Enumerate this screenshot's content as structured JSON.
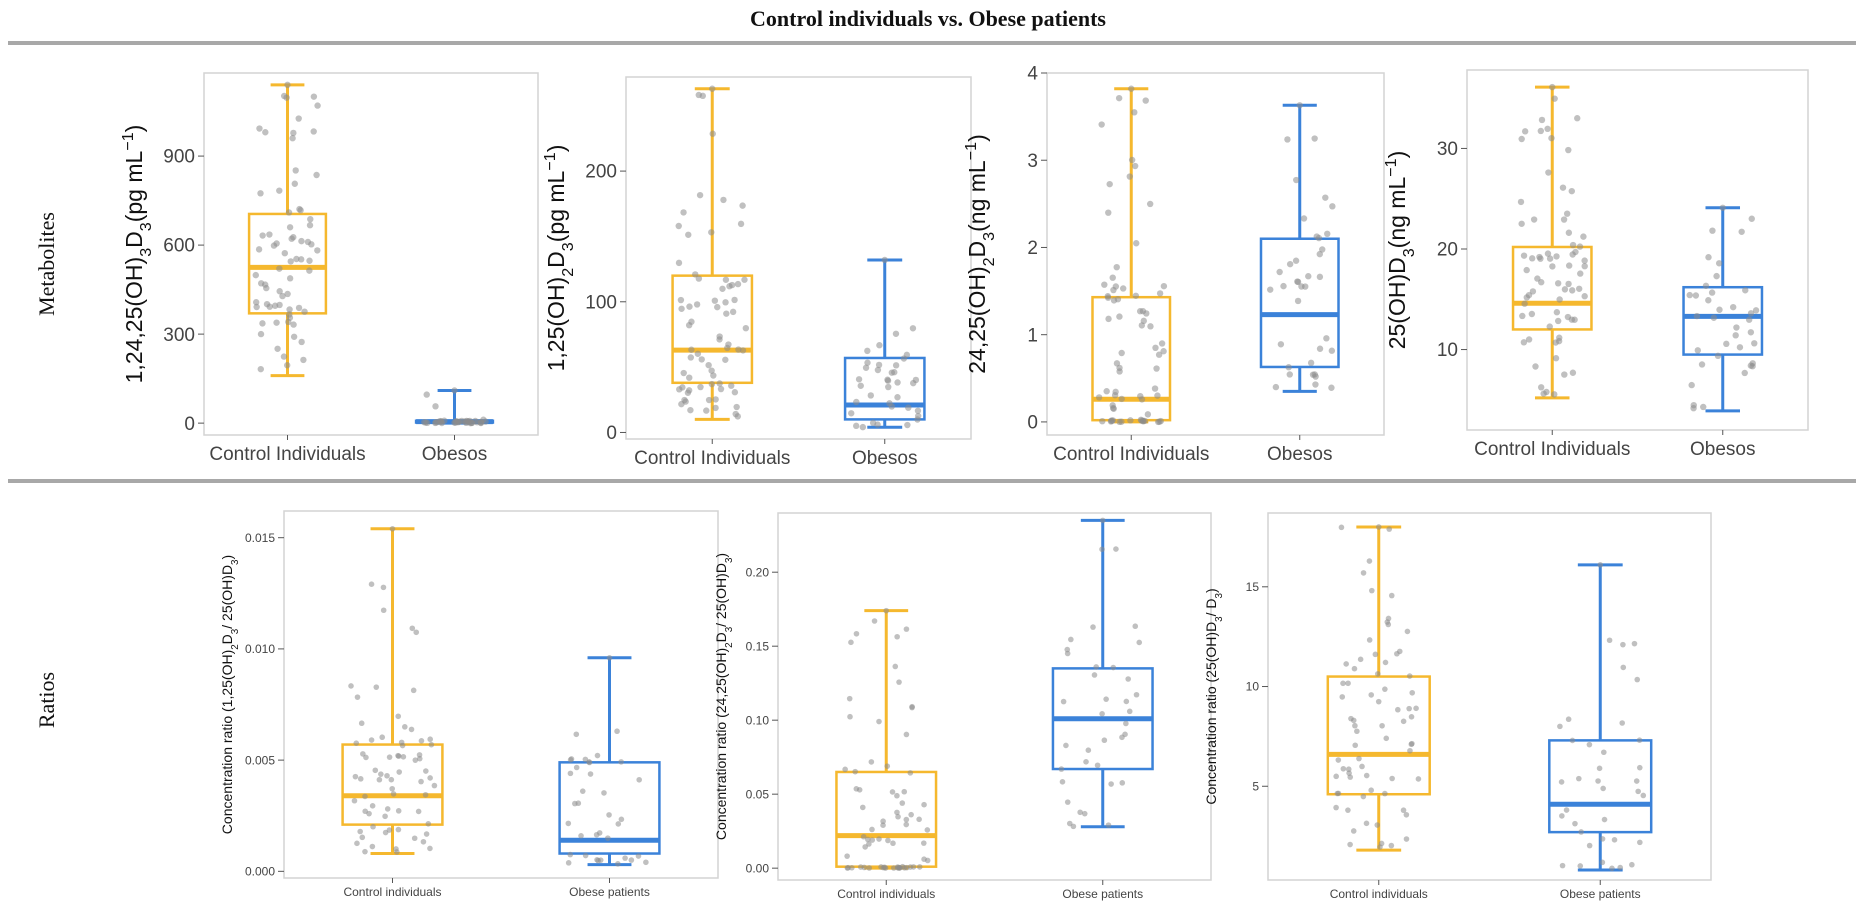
{
  "figure": {
    "title": "Control individuals vs. Obese patients",
    "row_labels": [
      "Metabolites",
      "Ratios"
    ]
  },
  "colors": {
    "control": "#f5b82e",
    "obese": "#3b82d9",
    "points": "#8c8c8c",
    "frame": "#d3d3d3",
    "rule": "#a8a8a8"
  },
  "chart_data": [
    {
      "type": "box",
      "ylabel": "1,24,25(OH)3D3(pg mL−1)",
      "ylabel_parts": [
        [
          "1,24,25(OH)",
          ""
        ],
        [
          "3",
          "sub"
        ],
        [
          "D",
          ""
        ],
        [
          "3",
          "sub"
        ],
        [
          "(pg mL",
          ""
        ],
        [
          "−1",
          "sup"
        ],
        [
          ")",
          ""
        ]
      ],
      "categories": [
        "Control Individuals",
        "Obesos"
      ],
      "ylim": [
        -40,
        1180
      ],
      "yticks": [
        0,
        300,
        600,
        900
      ],
      "boxes": [
        {
          "group": "Control Individuals",
          "min": 160,
          "q1": 370,
          "median": 525,
          "q3": 705,
          "max": 1140
        },
        {
          "group": "Obesos",
          "min": 0,
          "q1": 2,
          "median": 5,
          "q3": 8,
          "max": 110
        }
      ]
    },
    {
      "type": "box",
      "ylabel": "1,25(OH)2D3(pg mL−1)",
      "ylabel_parts": [
        [
          "1,25(OH)",
          ""
        ],
        [
          "2",
          "sub"
        ],
        [
          "D",
          ""
        ],
        [
          "3",
          "sub"
        ],
        [
          "(pg mL",
          ""
        ],
        [
          "−1",
          "sup"
        ],
        [
          ")",
          ""
        ]
      ],
      "categories": [
        "Control Individuals",
        "Obesos"
      ],
      "ylim": [
        -5,
        272
      ],
      "yticks": [
        0,
        100,
        200
      ],
      "boxes": [
        {
          "group": "Control Individuals",
          "min": 10,
          "q1": 38,
          "median": 63,
          "q3": 120,
          "max": 263
        },
        {
          "group": "Obesos",
          "min": 4,
          "q1": 10,
          "median": 21,
          "q3": 57,
          "max": 132
        }
      ]
    },
    {
      "type": "box",
      "ylabel": "24,25(OH)2D3(ng mL−1)",
      "ylabel_parts": [
        [
          "24,25(OH)",
          ""
        ],
        [
          "2",
          "sub"
        ],
        [
          "D",
          ""
        ],
        [
          "3",
          "sub"
        ],
        [
          "(ng mL",
          ""
        ],
        [
          "−1",
          "sup"
        ],
        [
          ")",
          ""
        ]
      ],
      "categories": [
        "Control Individuals",
        "Obesos"
      ],
      "ylim": [
        -0.15,
        4
      ],
      "yticks": [
        0,
        1,
        2,
        3,
        4
      ],
      "boxes": [
        {
          "group": "Control Individuals",
          "min": 0,
          "q1": 0.02,
          "median": 0.26,
          "q3": 1.43,
          "max": 3.82
        },
        {
          "group": "Obesos",
          "min": 0.35,
          "q1": 0.63,
          "median": 1.23,
          "q3": 2.1,
          "max": 3.63
        }
      ]
    },
    {
      "type": "box",
      "ylabel": "25(OH)D3(ng mL−1)",
      "ylabel_parts": [
        [
          "25(OH)D",
          ""
        ],
        [
          "3",
          "sub"
        ],
        [
          "(ng mL",
          ""
        ],
        [
          "−1",
          "sup"
        ],
        [
          ")",
          ""
        ]
      ],
      "categories": [
        "Control Individuals",
        "Obesos"
      ],
      "ylim": [
        2,
        37.8
      ],
      "yticks": [
        10,
        20,
        30
      ],
      "boxes": [
        {
          "group": "Control Individuals",
          "min": 5.2,
          "q1": 12,
          "median": 14.6,
          "q3": 20.2,
          "max": 36.1
        },
        {
          "group": "Obesos",
          "min": 3.9,
          "q1": 9.5,
          "median": 13.3,
          "q3": 16.2,
          "max": 24.1
        }
      ]
    },
    {
      "type": "box",
      "ylabel": "Concentration ratio (1,25(OH)2D3/ 25(OH)D3)",
      "ylabel_parts": [
        [
          "Concentration ratio (1,25(OH)",
          ""
        ],
        [
          "2",
          "sub"
        ],
        [
          "D",
          ""
        ],
        [
          "3",
          "sub"
        ],
        [
          "/ 25(OH)D",
          ""
        ],
        [
          "3",
          "sub"
        ],
        [
          ")",
          ""
        ]
      ],
      "categories": [
        "Control individuals",
        "Obese patients"
      ],
      "ylim": [
        -0.0003,
        0.0162
      ],
      "yticks": [
        0.0,
        0.005,
        0.01,
        0.015
      ],
      "tick_format": "fixed3",
      "boxes": [
        {
          "group": "Control individuals",
          "min": 0.0008,
          "q1": 0.0021,
          "median": 0.0034,
          "q3": 0.0057,
          "max": 0.0154
        },
        {
          "group": "Obese patients",
          "min": 0.0003,
          "q1": 0.0008,
          "median": 0.0014,
          "q3": 0.0049,
          "max": 0.0096
        }
      ]
    },
    {
      "type": "box",
      "ylabel": "Concentration ratio (24,25(OH)2D3/ 25(OH)D3)",
      "ylabel_parts": [
        [
          "Concentration ratio (24,25(OH)",
          ""
        ],
        [
          "2",
          "sub"
        ],
        [
          "D",
          ""
        ],
        [
          "3",
          "sub"
        ],
        [
          "/ 25(OH)D",
          ""
        ],
        [
          "3",
          "sub"
        ],
        [
          ")",
          ""
        ]
      ],
      "categories": [
        "Control individuals",
        "Obese patients"
      ],
      "ylim": [
        -0.008,
        0.24
      ],
      "yticks": [
        0.0,
        0.05,
        0.1,
        0.15,
        0.2
      ],
      "tick_format": "fixed2",
      "boxes": [
        {
          "group": "Control individuals",
          "min": 0,
          "q1": 0.001,
          "median": 0.022,
          "q3": 0.065,
          "max": 0.174
        },
        {
          "group": "Obese patients",
          "min": 0.028,
          "q1": 0.067,
          "median": 0.101,
          "q3": 0.135,
          "max": 0.235
        }
      ]
    },
    {
      "type": "box",
      "ylabel": "Concentration ratio (25(OH)D3/ D3)",
      "ylabel_parts": [
        [
          "Concentration ratio (25(OH)D",
          ""
        ],
        [
          "3",
          "sub"
        ],
        [
          "/ D",
          ""
        ],
        [
          "3",
          "sub"
        ],
        [
          ")",
          ""
        ]
      ],
      "categories": [
        "Control individuals",
        "Obese patients"
      ],
      "ylim": [
        0.3,
        18.7
      ],
      "yticks": [
        5,
        10,
        15
      ],
      "boxes": [
        {
          "group": "Control individuals",
          "min": 1.8,
          "q1": 4.6,
          "median": 6.6,
          "q3": 10.5,
          "max": 18
        },
        {
          "group": "Obese patients",
          "min": 0.8,
          "q1": 2.7,
          "median": 4.1,
          "q3": 7.3,
          "max": 16.1
        }
      ]
    }
  ]
}
